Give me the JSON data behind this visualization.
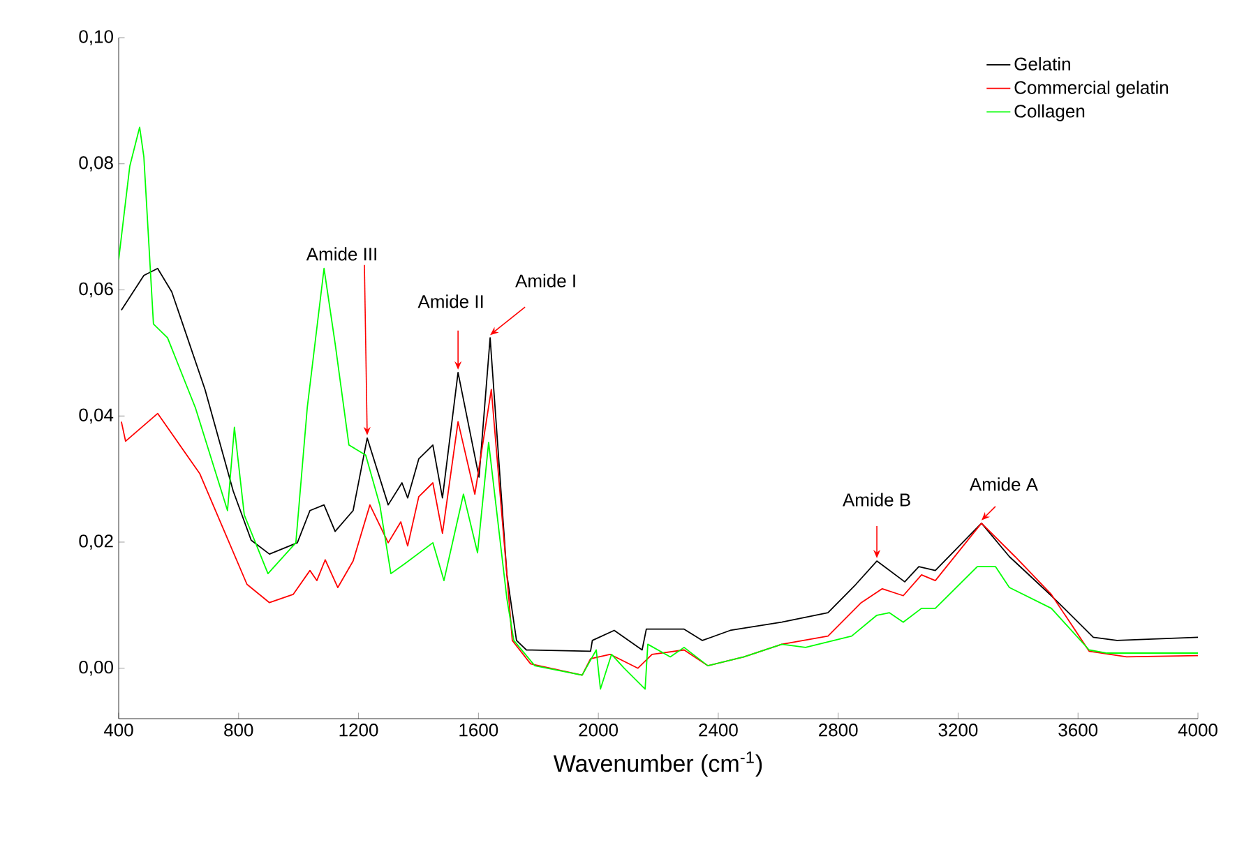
{
  "chart_data": {
    "type": "line",
    "xlabel": "Wavenumber (cm$^{-1}$)",
    "xlim": [
      400,
      4000
    ],
    "ylim": [
      -0.008,
      0.1
    ],
    "xticks": [
      400,
      800,
      1200,
      1600,
      2000,
      2400,
      2800,
      3200,
      3600,
      4000
    ],
    "yticks": [
      {
        "value": 0.0,
        "label": "0,00"
      },
      {
        "value": 0.02,
        "label": "0,02"
      },
      {
        "value": 0.04,
        "label": "0,04"
      },
      {
        "value": 0.06,
        "label": "0,06"
      },
      {
        "value": 0.08,
        "label": "0,08"
      },
      {
        "value": 0.1,
        "label": "0,10"
      }
    ],
    "grid": false,
    "legend": "top right",
    "marker": "none",
    "line_style": "solid",
    "series": [
      {
        "name": "Gelatin",
        "color": "#000000",
        "x": [
          409,
          484,
          530,
          577,
          688,
          782,
          842,
          903,
          996,
          1038,
          1085,
          1122,
          1182,
          1229,
          1299,
          1345,
          1364,
          1401,
          1448,
          1480,
          1532,
          1602,
          1639,
          1695,
          1727,
          1760,
          1974,
          1980,
          2053,
          2146,
          2160,
          2286,
          2347,
          2440,
          2612,
          2766,
          2859,
          2929,
          3022,
          3069,
          3124,
          3278,
          3371,
          3511,
          3651,
          3730,
          4000
        ],
        "values": [
          0.0568,
          0.0623,
          0.0634,
          0.0597,
          0.0442,
          0.0281,
          0.0203,
          0.0181,
          0.0199,
          0.025,
          0.0259,
          0.0217,
          0.025,
          0.0365,
          0.0259,
          0.0294,
          0.027,
          0.0332,
          0.0354,
          0.027,
          0.0469,
          0.0303,
          0.0524,
          0.0148,
          0.0044,
          0.0029,
          0.0027,
          0.0044,
          0.006,
          0.0029,
          0.0062,
          0.0062,
          0.0044,
          0.006,
          0.0073,
          0.0088,
          0.0133,
          0.017,
          0.0137,
          0.0161,
          0.0155,
          0.023,
          0.0177,
          0.0115,
          0.0049,
          0.0044,
          0.0049
        ]
      },
      {
        "name": "Commercial gelatin",
        "color": "#ff0000",
        "x": [
          409,
          423,
          530,
          670,
          828,
          903,
          982,
          1038,
          1061,
          1089,
          1131,
          1182,
          1238,
          1299,
          1341,
          1364,
          1401,
          1448,
          1480,
          1532,
          1588,
          1643,
          1695,
          1713,
          1774,
          1946,
          1974,
          2039,
          2132,
          2179,
          2286,
          2365,
          2486,
          2612,
          2766,
          2877,
          2947,
          3017,
          3078,
          3124,
          3278,
          3390,
          3511,
          3637,
          3762,
          4000
        ],
        "values": [
          0.0391,
          0.036,
          0.0404,
          0.0309,
          0.0133,
          0.0104,
          0.0117,
          0.0155,
          0.0139,
          0.0172,
          0.0128,
          0.017,
          0.0259,
          0.0199,
          0.0232,
          0.0194,
          0.0272,
          0.0294,
          0.0214,
          0.0391,
          0.0276,
          0.0442,
          0.0148,
          0.0044,
          0.0007,
          -0.0011,
          0.0015,
          0.0022,
          0.0,
          0.0022,
          0.0029,
          0.0004,
          0.0018,
          0.0038,
          0.0051,
          0.0104,
          0.0126,
          0.0115,
          0.0148,
          0.0139,
          0.023,
          0.0177,
          0.0117,
          0.0027,
          0.0018,
          0.002
        ]
      },
      {
        "name": "Collagen",
        "color": "#00ff00",
        "x": [
          400,
          437,
          470,
          484,
          516,
          563,
          656,
          763,
          786,
          819,
          898,
          991,
          1029,
          1085,
          1122,
          1168,
          1224,
          1271,
          1308,
          1355,
          1448,
          1485,
          1550,
          1597,
          1634,
          1695,
          1718,
          1788,
          1946,
          1993,
          2007,
          2044,
          2086,
          2156,
          2165,
          2240,
          2286,
          2365,
          2486,
          2612,
          2691,
          2845,
          2929,
          2971,
          3017,
          3078,
          3124,
          3264,
          3325,
          3371,
          3511,
          3637,
          3697,
          4000
        ],
        "values": [
          0.0648,
          0.0796,
          0.0858,
          0.0811,
          0.0546,
          0.0524,
          0.0413,
          0.025,
          0.0382,
          0.0243,
          0.015,
          0.0199,
          0.0413,
          0.0634,
          0.0515,
          0.0354,
          0.0338,
          0.0259,
          0.015,
          0.0166,
          0.0199,
          0.0139,
          0.0276,
          0.0183,
          0.0358,
          0.011,
          0.0044,
          0.0004,
          -0.0011,
          0.0029,
          -0.0033,
          0.0022,
          0.0,
          -0.0033,
          0.0038,
          0.0018,
          0.0033,
          0.0004,
          0.0018,
          0.0038,
          0.0033,
          0.0051,
          0.0084,
          0.0088,
          0.0073,
          0.0095,
          0.0095,
          0.0161,
          0.0161,
          0.0128,
          0.0095,
          0.0029,
          0.0024,
          0.0024
        ]
      }
    ],
    "annotations": [
      {
        "text": "Amide III",
        "x": 1229,
        "y": 0.0365
      },
      {
        "text": "Amide II",
        "x": 1532,
        "y": 0.0469
      },
      {
        "text": "Amide I",
        "x": 1639,
        "y": 0.0524
      },
      {
        "text": "Amide B",
        "x": 2929,
        "y": 0.017
      },
      {
        "text": "Amide A",
        "x": 3278,
        "y": 0.023
      }
    ]
  }
}
